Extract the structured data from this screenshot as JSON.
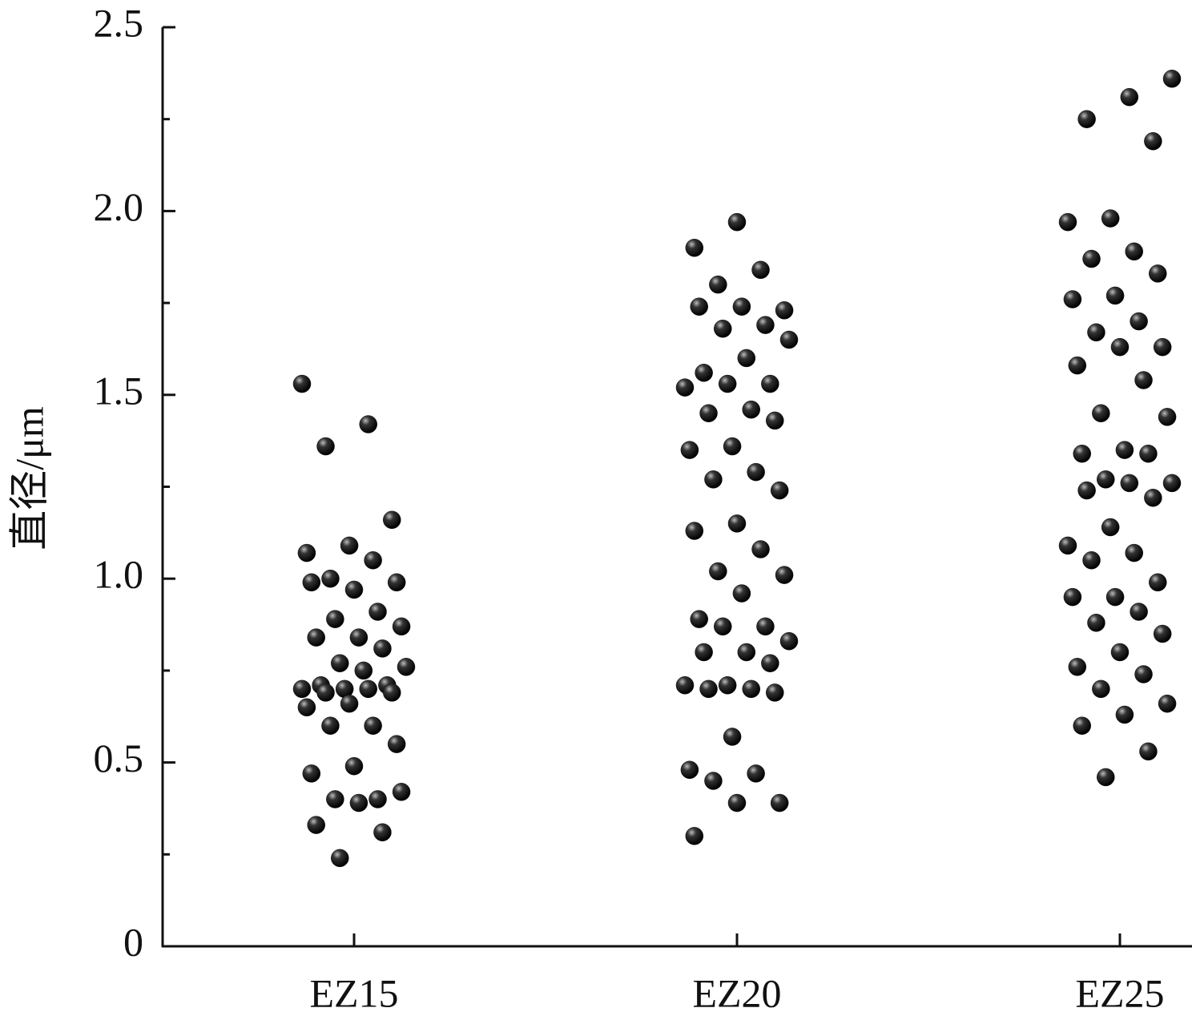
{
  "chart_data": {
    "type": "strip",
    "ylabel": "直径/μm",
    "categories": [
      "EZ15",
      "EZ20",
      "EZ25"
    ],
    "values": [
      [
        1.53,
        1.42,
        1.36,
        1.16,
        1.09,
        1.07,
        1.05,
        1.0,
        0.99,
        0.97,
        0.99,
        0.91,
        0.89,
        0.87,
        0.84,
        0.84,
        0.81,
        0.77,
        0.76,
        0.75,
        0.71,
        0.71,
        0.7,
        0.7,
        0.7,
        0.69,
        0.69,
        0.66,
        0.65,
        0.6,
        0.6,
        0.55,
        0.49,
        0.47,
        0.4,
        0.4,
        0.42,
        0.39,
        0.33,
        0.31,
        0.24
      ],
      [
        1.97,
        1.9,
        1.84,
        1.8,
        1.73,
        1.74,
        1.74,
        1.69,
        1.68,
        1.65,
        1.6,
        1.56,
        1.53,
        1.53,
        1.52,
        1.46,
        1.45,
        1.43,
        1.36,
        1.35,
        1.29,
        1.27,
        1.24,
        1.15,
        1.13,
        1.08,
        1.02,
        1.01,
        0.96,
        0.89,
        0.87,
        0.87,
        0.83,
        0.8,
        0.8,
        0.77,
        0.71,
        0.71,
        0.7,
        0.7,
        0.69,
        0.57,
        0.48,
        0.47,
        0.45,
        0.39,
        0.39,
        0.3
      ],
      [
        2.36,
        2.31,
        2.25,
        2.19,
        1.98,
        1.97,
        1.89,
        1.87,
        1.83,
        1.77,
        1.76,
        1.7,
        1.67,
        1.63,
        1.63,
        1.58,
        1.54,
        1.45,
        1.44,
        1.35,
        1.34,
        1.34,
        1.27,
        1.26,
        1.26,
        1.24,
        1.22,
        1.14,
        1.09,
        1.07,
        1.05,
        0.99,
        0.95,
        0.95,
        0.91,
        0.88,
        0.85,
        0.8,
        0.76,
        0.74,
        0.7,
        0.66,
        0.63,
        0.6,
        0.53,
        0.46
      ]
    ],
    "color": "#111111",
    "ylim": [
      0,
      2.5
    ],
    "yticks": [
      0,
      0.5,
      {
        "value": 1,
        "label": "1.0"
      },
      1.5,
      {
        "value": 2,
        "label": "2.0"
      },
      2.5
    ],
    "yminorticks": [
      0.25,
      0.75,
      1.25,
      1.75,
      2.25
    ]
  }
}
